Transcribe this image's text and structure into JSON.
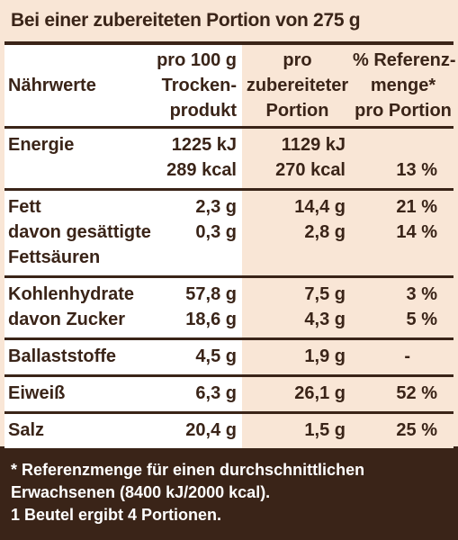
{
  "header": "Bei einer zubereiteten Portion von 275 g",
  "columns": {
    "c1": [
      "Nährwerte"
    ],
    "c2": [
      "pro 100 g",
      "Trocken-",
      "produkt"
    ],
    "c3": [
      "pro",
      "zubereiteter",
      "Portion"
    ],
    "c4": [
      "% Referenz-",
      "menge*",
      "pro Portion"
    ]
  },
  "rows": [
    {
      "c1": [
        "Energie",
        ""
      ],
      "c2": [
        "1225 kJ",
        "289 kcal"
      ],
      "c3": [
        "1129 kJ",
        "270 kcal"
      ],
      "c4": [
        "",
        "13 %"
      ]
    },
    {
      "c1": [
        "Fett",
        "davon gesättigte",
        "Fettsäuren"
      ],
      "c2": [
        "2,3 g",
        "0,3 g",
        ""
      ],
      "c3": [
        "14,4 g",
        "2,8 g",
        ""
      ],
      "c4": [
        "21 %",
        "14 %",
        ""
      ]
    },
    {
      "c1": [
        "Kohlenhydrate",
        "davon Zucker"
      ],
      "c2": [
        "57,8 g",
        "18,6 g"
      ],
      "c3": [
        "7,5 g",
        "4,3 g"
      ],
      "c4": [
        "3 %",
        "5 %"
      ]
    },
    {
      "c1": [
        "Ballaststoffe"
      ],
      "c2": [
        "4,5 g"
      ],
      "c3": [
        "1,9 g"
      ],
      "c4": [
        "-"
      ]
    },
    {
      "c1": [
        "Eiweiß"
      ],
      "c2": [
        "6,3 g"
      ],
      "c3": [
        "26,1 g"
      ],
      "c4": [
        "52 %"
      ]
    },
    {
      "c1": [
        "Salz"
      ],
      "c2": [
        "20,4 g"
      ],
      "c3": [
        "1,5 g"
      ],
      "c4": [
        "25 %"
      ]
    }
  ],
  "footer": [
    "* Referenzmenge für einen durchschnittlichen",
    "Erwachsenen (8400 kJ/2000 kcal).",
    "1 Beutel ergibt 4 Portionen."
  ]
}
